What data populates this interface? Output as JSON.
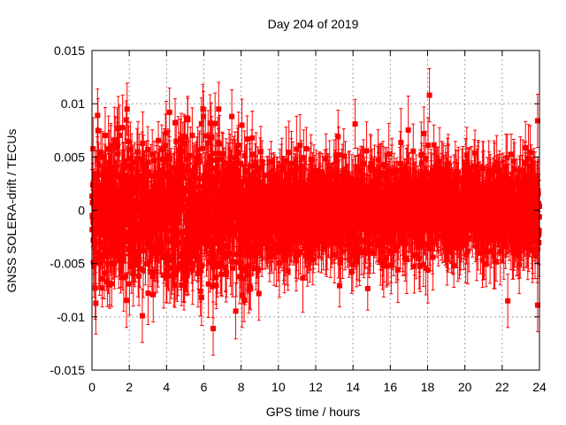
{
  "chart_data": {
    "type": "scatter",
    "title": "Day 204 of 2019",
    "xlabel": "GPS time / hours",
    "ylabel": "GNSS SOLERA-drift / TECUs",
    "xlim": [
      0,
      24
    ],
    "ylim": [
      -0.015,
      0.015
    ],
    "x_ticks": [
      0,
      2,
      4,
      6,
      8,
      10,
      12,
      14,
      16,
      18,
      20,
      22,
      24
    ],
    "y_ticks": [
      -0.015,
      -0.01,
      -0.005,
      0,
      0.005,
      0.01,
      0.015
    ],
    "x_tick_labels": [
      "0",
      "2",
      "4",
      "6",
      "8",
      "10",
      "12",
      "14",
      "16",
      "18",
      "20",
      "22",
      "24"
    ],
    "y_tick_labels": [
      "-0.015",
      "-0.01",
      "-0.005",
      "0",
      "0.005",
      "0.01",
      "0.015"
    ],
    "grid": true,
    "series_color": "#ff0000",
    "marker": "square",
    "error_bars": true,
    "typical_error": 0.0025,
    "num_points": 2880,
    "noise_envelope": {
      "hours": [
        0,
        2,
        4,
        6,
        8,
        10,
        12,
        14,
        16,
        18,
        20,
        22,
        24
      ],
      "std": [
        0.0035,
        0.0034,
        0.0033,
        0.0033,
        0.0031,
        0.0024,
        0.002,
        0.0023,
        0.0024,
        0.0021,
        0.0019,
        0.002,
        0.0024
      ]
    },
    "notable_points": [
      {
        "x": 18.1,
        "y": 0.0108
      },
      {
        "x": 0.3,
        "y": 0.0089
      },
      {
        "x": 7.5,
        "y": 0.0088
      },
      {
        "x": 6.5,
        "y": -0.0111
      },
      {
        "x": 2.7,
        "y": -0.0099
      },
      {
        "x": 23.9,
        "y": 0.0084
      },
      {
        "x": 23.9,
        "y": -0.0089
      },
      {
        "x": 22.3,
        "y": -0.0085
      },
      {
        "x": 13.2,
        "y": 0.0069
      },
      {
        "x": 17.8,
        "y": 0.0072
      }
    ]
  }
}
